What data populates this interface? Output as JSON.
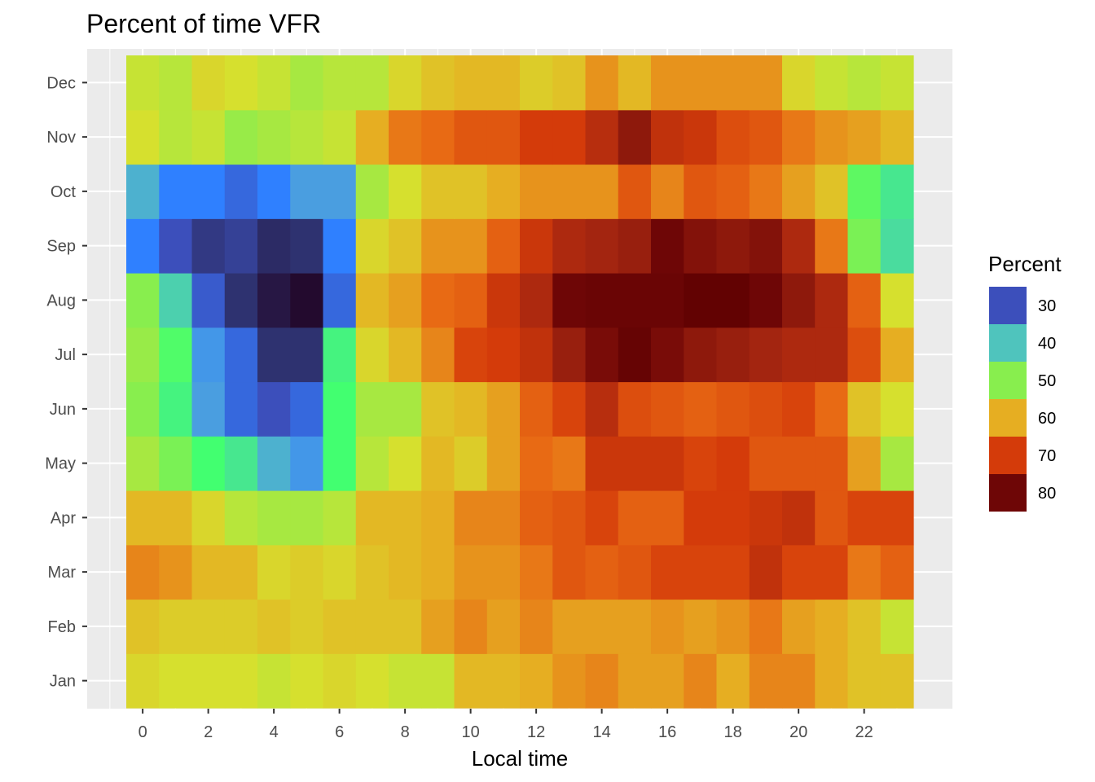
{
  "chart_data": {
    "type": "heatmap",
    "title": "Percent of time VFR",
    "xlabel": "Local time",
    "ylabel": "",
    "x": [
      0,
      1,
      2,
      3,
      4,
      5,
      6,
      7,
      8,
      9,
      10,
      11,
      12,
      13,
      14,
      15,
      16,
      17,
      18,
      19,
      20,
      21,
      22,
      23
    ],
    "x_tick_labels": [
      "0",
      "2",
      "4",
      "6",
      "8",
      "10",
      "12",
      "14",
      "16",
      "18",
      "20",
      "22"
    ],
    "y_categories": [
      "Jan",
      "Feb",
      "Mar",
      "Apr",
      "May",
      "Jun",
      "Jul",
      "Aug",
      "Sep",
      "Oct",
      "Nov",
      "Dec"
    ],
    "values": [
      [
        56,
        55,
        55,
        55,
        54,
        55,
        56,
        55,
        54,
        54,
        59,
        59,
        60,
        62,
        63,
        61,
        61,
        63,
        60,
        63,
        63,
        60,
        58,
        58
      ],
      [
        58,
        57,
        57,
        57,
        58,
        57,
        58,
        58,
        58,
        61,
        63,
        61,
        63,
        61,
        61,
        61,
        62,
        61,
        62,
        64,
        61,
        60,
        58,
        54
      ],
      [
        63,
        62,
        59,
        59,
        56,
        57,
        56,
        58,
        59,
        60,
        62,
        62,
        64,
        67,
        66,
        67,
        69,
        69,
        69,
        72,
        69,
        69,
        64,
        66
      ],
      [
        59,
        59,
        56,
        53,
        52,
        52,
        53,
        59,
        59,
        60,
        63,
        63,
        66,
        67,
        69,
        66,
        66,
        70,
        70,
        71,
        72,
        67,
        69,
        69
      ],
      [
        52,
        49,
        45,
        43,
        39,
        37,
        45,
        53,
        55,
        59,
        57,
        61,
        65,
        64,
        71,
        71,
        71,
        69,
        70,
        67,
        67,
        67,
        61,
        52
      ],
      [
        50,
        44,
        38,
        32,
        30,
        32,
        45,
        52,
        52,
        58,
        59,
        61,
        66,
        69,
        73,
        68,
        67,
        66,
        67,
        68,
        69,
        65,
        58,
        55
      ],
      [
        51,
        46,
        37,
        32,
        26,
        26,
        44,
        56,
        59,
        63,
        69,
        70,
        72,
        76,
        79,
        82,
        79,
        77,
        76,
        75,
        74,
        74,
        68,
        60
      ],
      [
        50,
        41,
        31,
        26,
        22,
        20,
        32,
        59,
        61,
        65,
        66,
        71,
        74,
        80,
        81,
        81,
        81,
        83,
        83,
        80,
        77,
        74,
        66,
        55
      ],
      [
        34,
        30,
        27,
        28,
        25,
        26,
        34,
        56,
        58,
        62,
        62,
        66,
        71,
        74,
        75,
        76,
        80,
        78,
        77,
        78,
        74,
        64,
        49,
        42
      ],
      [
        39,
        34,
        34,
        32,
        34,
        38,
        38,
        52,
        55,
        58,
        58,
        60,
        62,
        62,
        62,
        67,
        63,
        67,
        66,
        64,
        61,
        58,
        47,
        43
      ],
      [
        55,
        53,
        54,
        51,
        52,
        53,
        54,
        60,
        64,
        65,
        67,
        67,
        70,
        70,
        73,
        77,
        72,
        71,
        68,
        67,
        64,
        62,
        61,
        59
      ],
      [
        54,
        53,
        56,
        55,
        54,
        52,
        53,
        53,
        56,
        58,
        59,
        59,
        57,
        58,
        62,
        59,
        62,
        62,
        62,
        62,
        56,
        54,
        53,
        54
      ]
    ],
    "legend": {
      "title": "Percent",
      "ticks": [
        30,
        40,
        50,
        60,
        70,
        80
      ]
    },
    "color_stops": [
      {
        "v": 20,
        "c": "#230a2e"
      },
      {
        "v": 26,
        "c": "#2e3270"
      },
      {
        "v": 30,
        "c": "#3c4fbb"
      },
      {
        "v": 34,
        "c": "#2f80ff"
      },
      {
        "v": 38,
        "c": "#4a9ee0"
      },
      {
        "v": 40,
        "c": "#4fc4bd"
      },
      {
        "v": 45,
        "c": "#42ff70"
      },
      {
        "v": 50,
        "c": "#88ee4e"
      },
      {
        "v": 55,
        "c": "#d6e02e"
      },
      {
        "v": 60,
        "c": "#e6ae22"
      },
      {
        "v": 65,
        "c": "#e86a14"
      },
      {
        "v": 70,
        "c": "#d43b0a"
      },
      {
        "v": 75,
        "c": "#a32510"
      },
      {
        "v": 80,
        "c": "#6e0606"
      },
      {
        "v": 85,
        "c": "#5a0000"
      }
    ],
    "panel_background": "#ebebeb",
    "grid_color": "#ffffff",
    "legend_position": "right"
  }
}
